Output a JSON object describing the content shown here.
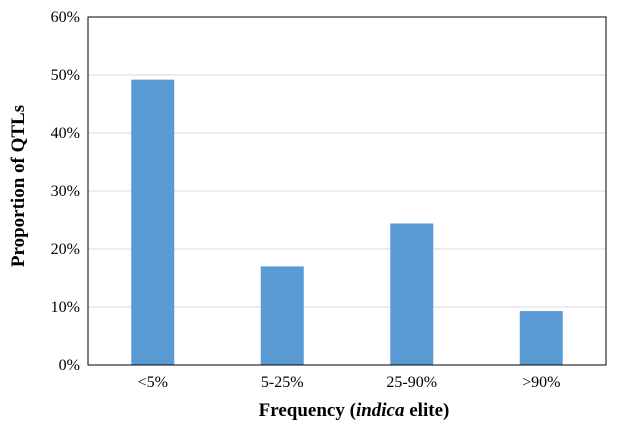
{
  "chart_data": {
    "type": "bar",
    "categories": [
      "<5%",
      "5-25%",
      "25-90%",
      ">90%"
    ],
    "values": [
      49.2,
      17.0,
      24.4,
      9.3
    ],
    "xlabel_parts": [
      "Frequency (",
      "indica",
      " elite)"
    ],
    "ylabel": "Proportion of QTLs",
    "ylim": [
      0,
      60
    ],
    "yticks": [
      0,
      10,
      20,
      30,
      40,
      50,
      60
    ],
    "ytick_labels": [
      "0%",
      "10%",
      "20%",
      "30%",
      "40%",
      "50%",
      "60%"
    ],
    "grid": true,
    "bar_color": "#5b9bd5",
    "grid_color": "#d9d9d9"
  }
}
